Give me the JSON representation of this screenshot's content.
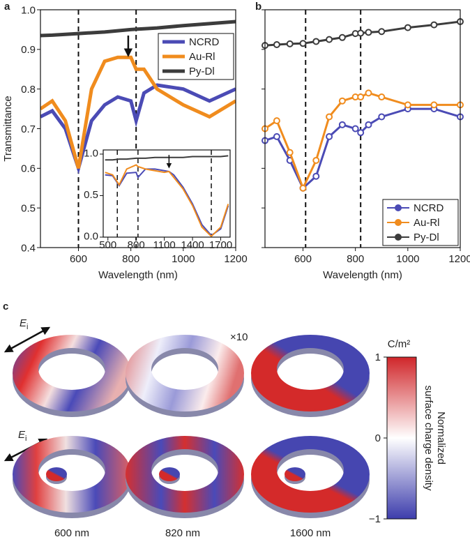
{
  "chart_data": [
    {
      "type": "line",
      "panel_label": "a",
      "xlabel": "Wavelength (nm)",
      "ylabel": "Transmittance",
      "x": [
        455,
        500,
        550,
        600,
        650,
        700,
        750,
        800,
        820,
        850,
        900,
        1000,
        1100,
        1200
      ],
      "series": [
        {
          "name": "NCRD",
          "color": "#4b4bb5",
          "values": [
            0.73,
            0.745,
            0.7,
            0.6,
            0.72,
            0.76,
            0.78,
            0.77,
            0.72,
            0.79,
            0.81,
            0.8,
            0.77,
            0.8
          ]
        },
        {
          "name": "Au-Rl",
          "color": "#f08c1e",
          "values": [
            0.75,
            0.77,
            0.72,
            0.6,
            0.8,
            0.87,
            0.88,
            0.88,
            0.85,
            0.85,
            0.8,
            0.76,
            0.73,
            0.77
          ]
        },
        {
          "name": "Py-Dl",
          "color": "#3c3c3c",
          "values": [
            0.935,
            0.936,
            0.938,
            0.94,
            0.942,
            0.944,
            0.947,
            0.95,
            0.951,
            0.952,
            0.954,
            0.96,
            0.965,
            0.97
          ]
        }
      ],
      "xlim": [
        455,
        1200
      ],
      "xticks": [
        600,
        800,
        1000,
        1200
      ],
      "ylim": [
        0.4,
        1.0
      ],
      "yticks": [
        0.4,
        0.5,
        0.6,
        0.7,
        0.8,
        0.9,
        {
          "value": 1.0,
          "label": "1.0"
        }
      ],
      "vlines": [
        600,
        820
      ],
      "arrows": [
        {
          "x": 790,
          "from": 0.935,
          "to": 0.885
        }
      ],
      "legend": "upper right"
    },
    {
      "type": "line",
      "panel_label": "b",
      "xlabel": "Wavelength (nm)",
      "marker": "circle",
      "ytick_labels": false,
      "x": [
        455,
        500,
        550,
        600,
        650,
        700,
        750,
        800,
        820,
        850,
        900,
        1000,
        1100,
        1200
      ],
      "series": [
        {
          "name": "NCRD",
          "color": "#4b4bb5",
          "values": [
            0.67,
            0.68,
            0.62,
            0.55,
            0.58,
            0.68,
            0.71,
            0.7,
            0.69,
            0.71,
            0.73,
            0.75,
            0.75,
            0.73
          ]
        },
        {
          "name": "Au-Rl",
          "color": "#f08c1e",
          "values": [
            0.7,
            0.72,
            0.64,
            0.55,
            0.62,
            0.73,
            0.77,
            0.78,
            0.78,
            0.79,
            0.78,
            0.76,
            0.76,
            0.76
          ]
        },
        {
          "name": "Py-Dl",
          "color": "#3c3c3c",
          "values": [
            0.91,
            0.912,
            0.914,
            0.915,
            0.92,
            0.925,
            0.93,
            0.94,
            0.941,
            0.943,
            0.945,
            0.955,
            0.962,
            0.97
          ]
        }
      ],
      "xlim": [
        455,
        1200
      ],
      "xticks": [
        600,
        800,
        1000,
        1200
      ],
      "ylim": [
        0.4,
        1.0
      ],
      "yticks": [
        0.4,
        0.5,
        0.6,
        0.7,
        0.8,
        0.9,
        1.0
      ],
      "vlines": [
        610,
        820
      ],
      "legend": "lower right"
    },
    {
      "type": "line",
      "inset": true,
      "x": [
        470,
        550,
        620,
        700,
        800,
        820,
        900,
        1000,
        1100,
        1150,
        1200,
        1300,
        1400,
        1500,
        1600,
        1700,
        1780
      ],
      "series": [
        {
          "name": "NCRD",
          "color": "#4b4bb5",
          "values": [
            0.75,
            0.74,
            0.62,
            0.77,
            0.78,
            0.72,
            0.82,
            0.82,
            0.8,
            0.79,
            0.75,
            0.6,
            0.4,
            0.15,
            0.02,
            0.1,
            0.38
          ]
        },
        {
          "name": "Au-Rl",
          "color": "#f08c1e",
          "values": [
            0.78,
            0.75,
            0.63,
            0.82,
            0.87,
            0.85,
            0.82,
            0.8,
            0.78,
            0.79,
            0.72,
            0.58,
            0.38,
            0.12,
            0.01,
            0.12,
            0.4
          ]
        },
        {
          "name": "Py-Dl",
          "color": "#3c3c3c",
          "values": [
            0.93,
            0.93,
            0.94,
            0.94,
            0.95,
            0.95,
            0.95,
            0.96,
            0.96,
            0.96,
            0.96,
            0.96,
            0.97,
            0.97,
            0.97,
            0.97,
            0.98
          ]
        }
      ],
      "xlim": [
        450,
        1800
      ],
      "xticks": [
        500,
        800,
        1100,
        1400,
        1700
      ],
      "ylim": [
        0,
        1.05
      ],
      "yticks": [
        {
          "value": 0,
          "label": "0.0"
        },
        0.5,
        {
          "value": 1.0,
          "label": "1.0"
        }
      ],
      "vlines": [
        600,
        820,
        1600
      ],
      "arrows": [
        {
          "x": 1150,
          "from": 0.99,
          "to": 0.84
        }
      ]
    }
  ],
  "panel_c": {
    "panel_label": "c",
    "field": {
      "main": "E",
      "sub": "i"
    },
    "scale_note": "×10",
    "wavelengths": [
      "600 nm",
      "820 nm",
      "1600 nm"
    ],
    "colorbar": {
      "unit": "C/m²",
      "ticks": [
        1,
        0,
        {
          "value": -1,
          "label": "−1"
        }
      ],
      "label": [
        "Normalized",
        "surface charge density"
      ]
    }
  }
}
